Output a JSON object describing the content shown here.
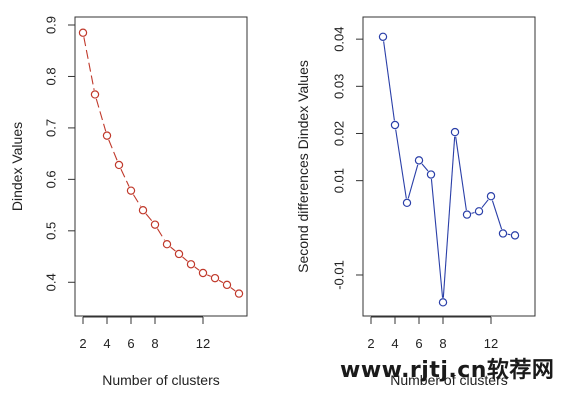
{
  "chart_data": [
    {
      "type": "line",
      "title": "",
      "xlabel": "Number of clusters",
      "ylabel": "Dindex Values",
      "x": [
        2,
        3,
        4,
        5,
        6,
        7,
        8,
        9,
        10,
        11,
        12,
        13,
        14,
        15
      ],
      "series": [
        {
          "values": [
            0.885,
            0.765,
            0.685,
            0.628,
            0.578,
            0.54,
            0.512,
            0.474,
            0.455,
            0.435,
            0.418,
            0.408,
            0.395,
            0.378
          ],
          "color": "#c0392b"
        }
      ],
      "xlim": [
        2,
        15
      ],
      "ylim": [
        0.35,
        0.9
      ],
      "xticks": [
        2,
        4,
        6,
        8,
        12
      ],
      "xtick_labels": [
        "2",
        "4",
        "6",
        "8",
        "12"
      ],
      "yticks": [
        0.4,
        0.5,
        0.6,
        0.7,
        0.8,
        0.9
      ],
      "ytick_labels": [
        "0.4",
        "0.5",
        "0.6",
        "0.7",
        "0.8",
        "0.9"
      ],
      "line_style": "dashed",
      "marker": "open-circle",
      "grid": false,
      "legend": "none"
    },
    {
      "type": "line",
      "title": "",
      "xlabel": "Number of clusters",
      "ylabel": "Second differences Dindex Values",
      "x": [
        3,
        4,
        5,
        6,
        7,
        8,
        9,
        10,
        11,
        12,
        13,
        14
      ],
      "series": [
        {
          "values": [
            0.0405,
            0.0218,
            0.0053,
            0.0143,
            0.0113,
            -0.0158,
            0.0203,
            0.0028,
            0.0035,
            0.0067,
            -0.0012,
            -0.0016
          ],
          "color": "#2a3fa8"
        }
      ],
      "xlim": [
        2,
        15
      ],
      "ylim": [
        -0.017,
        0.043
      ],
      "xticks": [
        2,
        4,
        6,
        8,
        12
      ],
      "xtick_labels": [
        "2",
        "4",
        "6",
        "8",
        "12"
      ],
      "yticks": [
        -0.01,
        0.01,
        0.02,
        0.03,
        0.04
      ],
      "ytick_labels": [
        "-0.01",
        "0.01",
        "0.02",
        "0.03",
        "0.04"
      ],
      "line_style": "solid",
      "marker": "open-circle",
      "grid": false,
      "legend": "none"
    }
  ],
  "watermark": "www.rjtj.cn软荐网"
}
